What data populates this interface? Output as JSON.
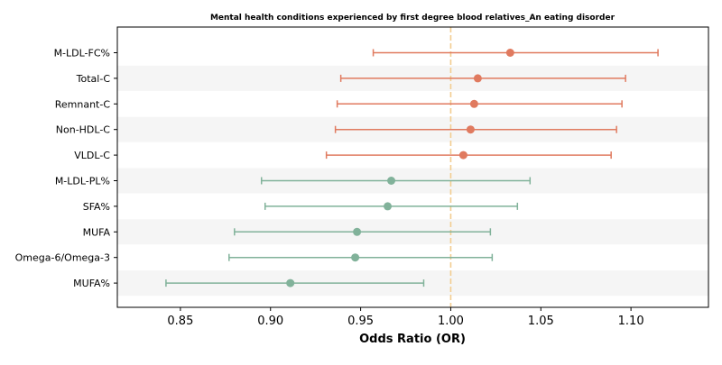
{
  "chart_data": {
    "type": "forest",
    "title": "Mental health conditions experienced by first degree blood relatives_An eating disorder",
    "xlabel": "Odds Ratio (OR)",
    "xlim": [
      0.815,
      1.143
    ],
    "xticks": [
      "0.85",
      "0.90",
      "0.95",
      "1.00",
      "1.05",
      "1.10"
    ],
    "reference_line": 1.0,
    "grid": false,
    "band_shading": "alternating rows",
    "colors": {
      "above_one": "#E07A5F",
      "below_one": "#81B29A",
      "reference": "#F2CC8F",
      "band": "#F5F5F5"
    },
    "items": [
      {
        "label": "M-LDL-FC%",
        "or": 1.033,
        "lower": 0.957,
        "upper": 1.115,
        "group": "above_one"
      },
      {
        "label": "Total-C",
        "or": 1.015,
        "lower": 0.939,
        "upper": 1.097,
        "group": "above_one"
      },
      {
        "label": "Remnant-C",
        "or": 1.013,
        "lower": 0.937,
        "upper": 1.095,
        "group": "above_one"
      },
      {
        "label": "Non-HDL-C",
        "or": 1.011,
        "lower": 0.936,
        "upper": 1.092,
        "group": "above_one"
      },
      {
        "label": "VLDL-C",
        "or": 1.007,
        "lower": 0.931,
        "upper": 1.089,
        "group": "above_one"
      },
      {
        "label": "M-LDL-PL%",
        "or": 0.967,
        "lower": 0.895,
        "upper": 1.044,
        "group": "below_one"
      },
      {
        "label": "SFA%",
        "or": 0.965,
        "lower": 0.897,
        "upper": 1.037,
        "group": "below_one"
      },
      {
        "label": "MUFA",
        "or": 0.948,
        "lower": 0.88,
        "upper": 1.022,
        "group": "below_one"
      },
      {
        "label": "Omega-6/Omega-3",
        "or": 0.947,
        "lower": 0.877,
        "upper": 1.023,
        "group": "below_one"
      },
      {
        "label": "MUFA%",
        "or": 0.911,
        "lower": 0.842,
        "upper": 0.985,
        "group": "below_one"
      }
    ]
  }
}
